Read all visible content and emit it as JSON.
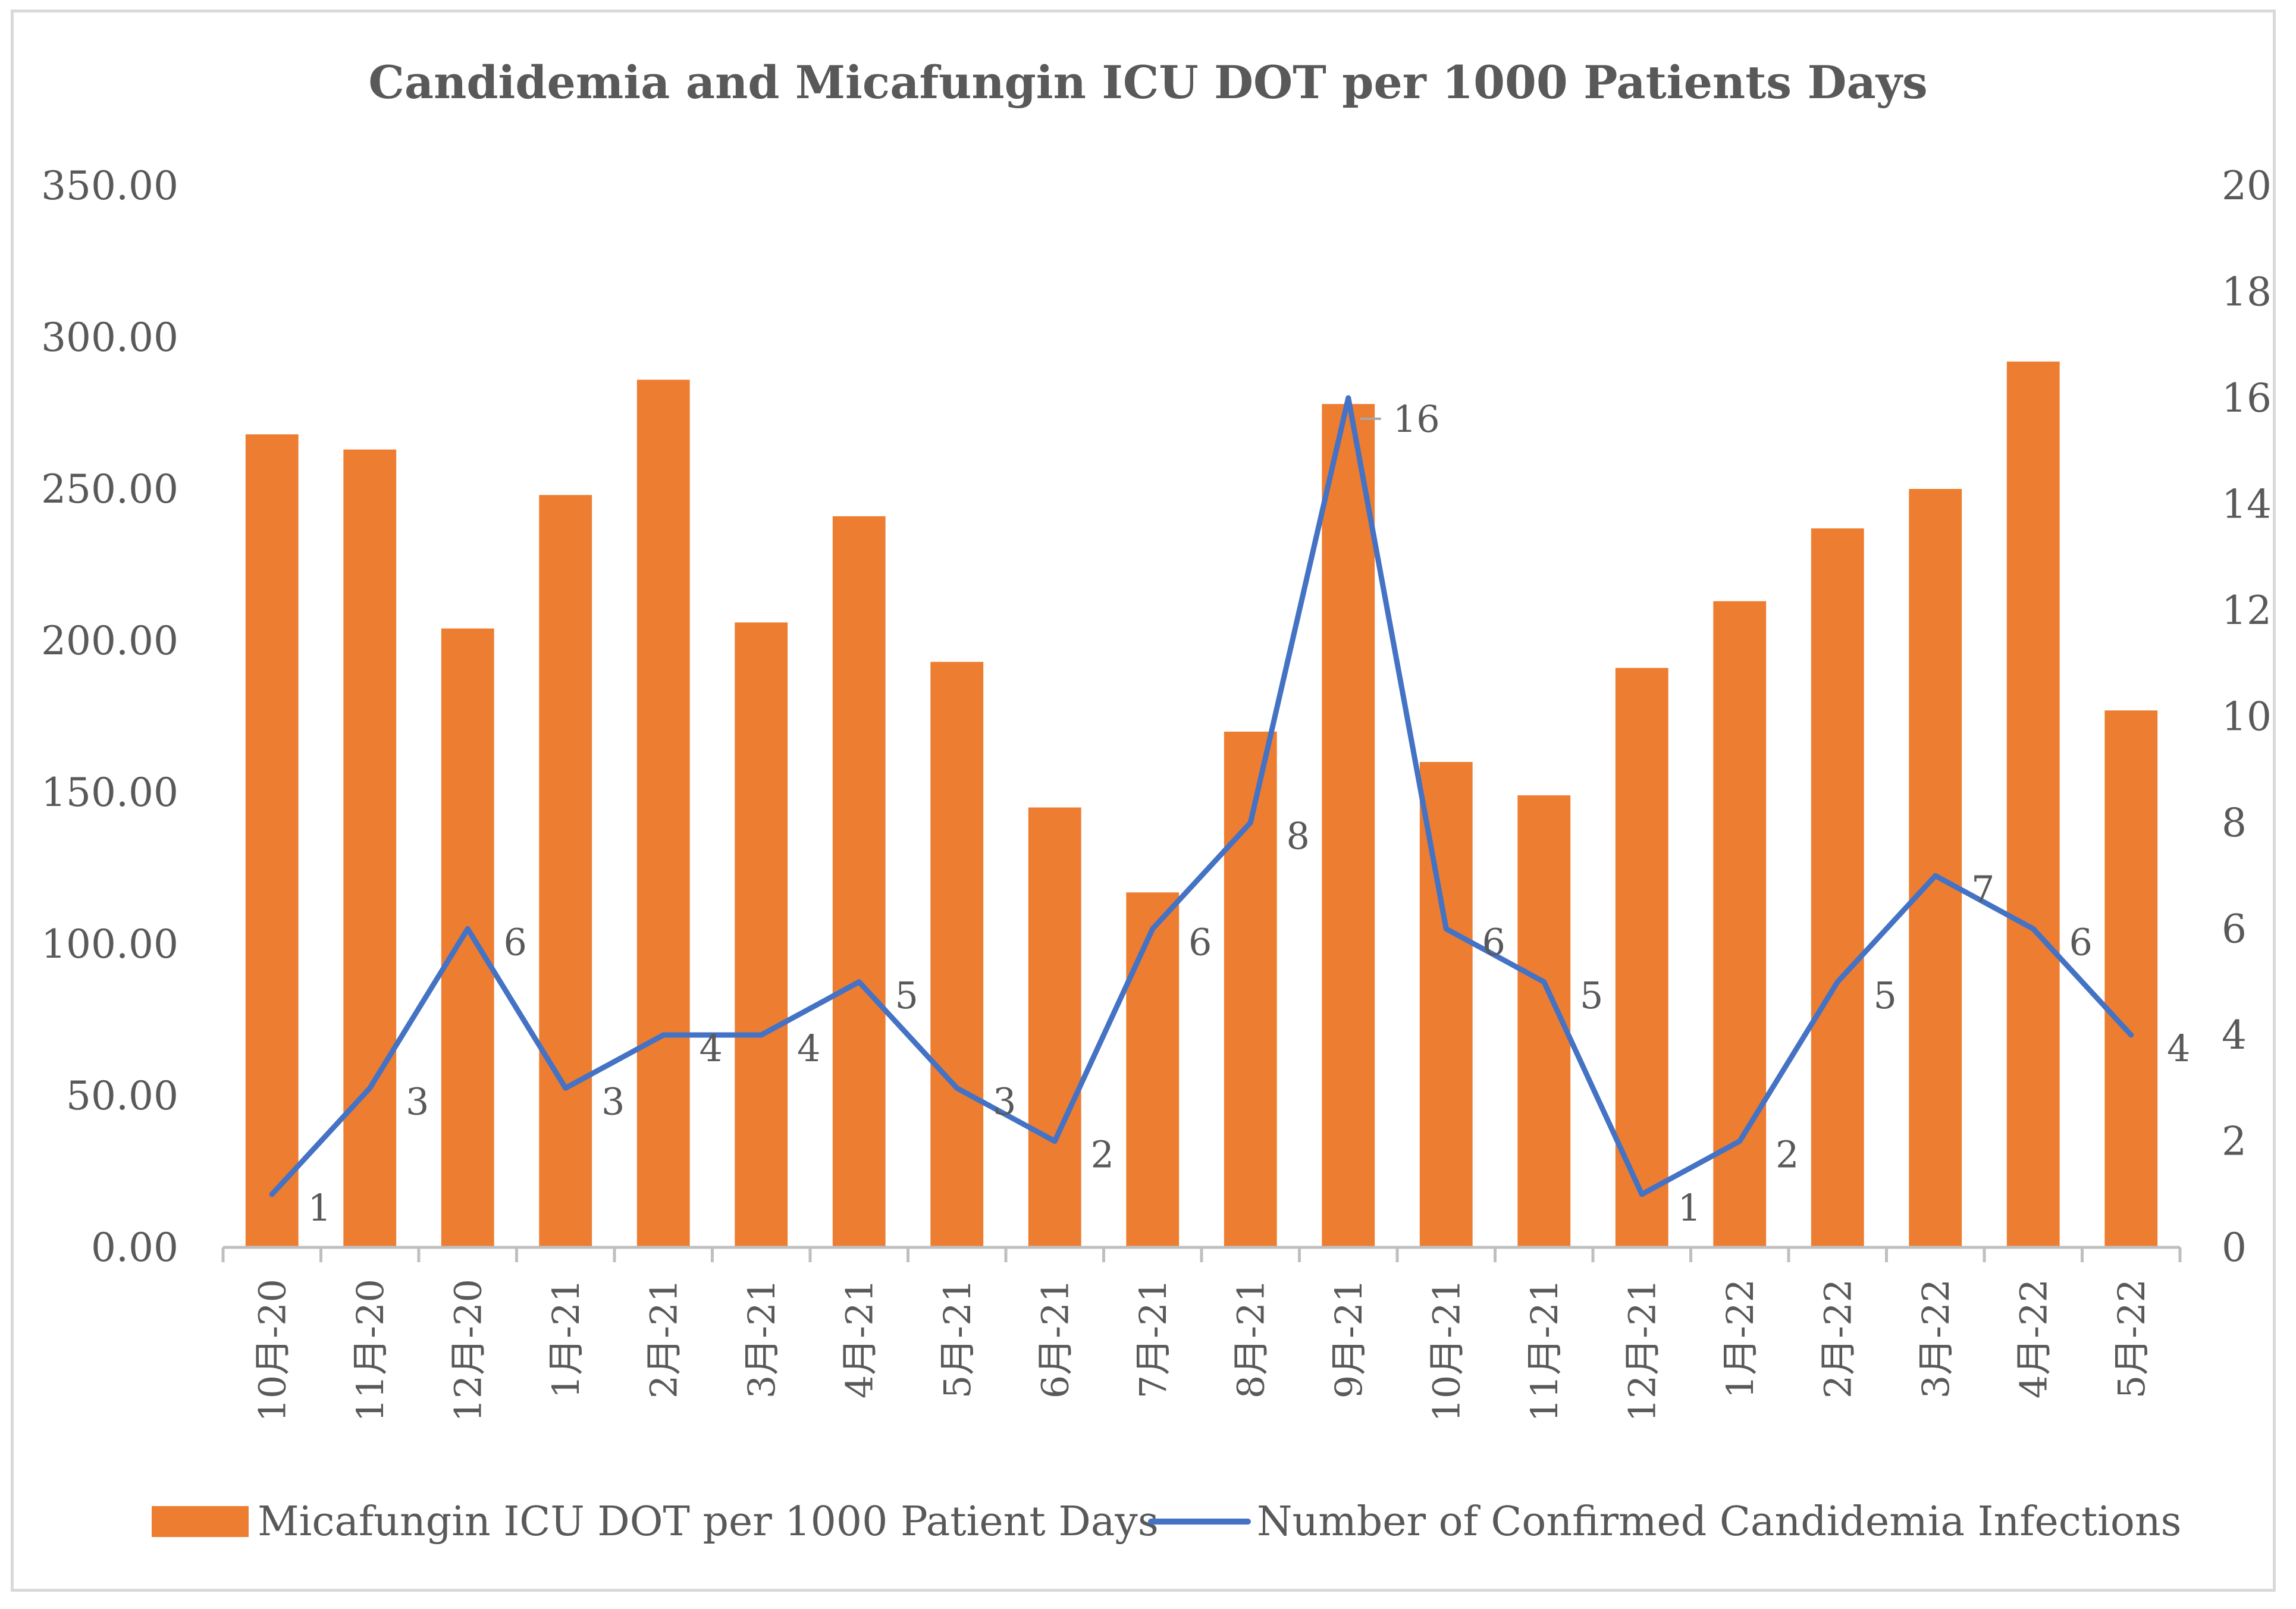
{
  "chart_data": {
    "type": "bar",
    "title": "Candidemia and Micafungin ICU DOT per 1000 Patients Days",
    "categories": [
      "10月-20",
      "11月-20",
      "12月-20",
      "1月-21",
      "2月-21",
      "3月-21",
      "4月-21",
      "5月-21",
      "6月-21",
      "7月-21",
      "8月-21",
      "9月-21",
      "10月-21",
      "11月-21",
      "12月-21",
      "1月-22",
      "2月-22",
      "3月-22",
      "4月-22",
      "5月-22"
    ],
    "y_left": {
      "min": 0,
      "max": 350,
      "ticks": [
        "0.00",
        "50.00",
        "100.00",
        "150.00",
        "200.00",
        "250.00",
        "300.00",
        "350.00"
      ]
    },
    "y_right": {
      "min": 0,
      "max": 20,
      "ticks": [
        "0",
        "2",
        "4",
        "6",
        "8",
        "10",
        "12",
        "14",
        "16",
        "18",
        "20"
      ]
    },
    "series": [
      {
        "name": "Micafungin ICU DOT per 1000 Patient Days",
        "type": "bar",
        "axis": "left",
        "color": "#ED7D31",
        "values": [
          268,
          263,
          204,
          248,
          286,
          206,
          241,
          193,
          145,
          117,
          170,
          278,
          160,
          149,
          191,
          213,
          237,
          250,
          292,
          177
        ]
      },
      {
        "name": "Number of Confirmed Candidemia Infections",
        "type": "line",
        "axis": "right",
        "color": "#4472C4",
        "values": [
          1,
          3,
          6,
          3,
          4,
          4,
          5,
          3,
          2,
          6,
          8,
          16,
          6,
          5,
          1,
          2,
          5,
          7,
          6,
          4
        ],
        "labels": [
          "1",
          "3",
          "6",
          "3",
          "4",
          "4",
          "5",
          "3",
          "2",
          "6",
          "8",
          "16",
          "6",
          "5",
          "1",
          "2",
          "5",
          "7",
          "6",
          "4"
        ]
      }
    ],
    "legend_position": "bottom",
    "gridlines": false
  }
}
